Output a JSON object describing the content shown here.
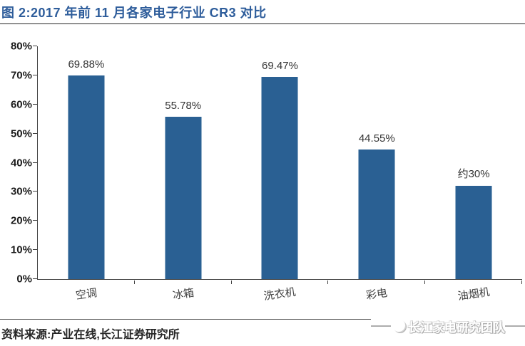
{
  "header": {
    "title": "图 2:2017 年前 11 月各家电子行业 CR3 对比",
    "title_color": "#2E5D9B"
  },
  "chart_data": {
    "type": "bar",
    "title": "2017 年前 11 月各家电子行业 CR3 对比",
    "categories": [
      "空调",
      "冰箱",
      "洗衣机",
      "彩电",
      "油烟机"
    ],
    "values": [
      69.88,
      55.78,
      69.47,
      44.55,
      32
    ],
    "value_labels": [
      "69.88%",
      "55.78%",
      "69.47%",
      "44.55%",
      "约30%"
    ],
    "xlabel": "",
    "ylabel": "",
    "ylim": [
      0,
      80
    ],
    "ytick_labels": [
      "0%",
      "10%",
      "20%",
      "30%",
      "40%",
      "50%",
      "60%",
      "70%",
      "80%"
    ],
    "grid": false,
    "legend": null,
    "bar_color": "#2A6093"
  },
  "footer": {
    "source": "资料来源:产业在线,长江证券研究所"
  },
  "watermark": {
    "text": "长江家电研究团队",
    "icon": "doodle-mascot-icon"
  }
}
